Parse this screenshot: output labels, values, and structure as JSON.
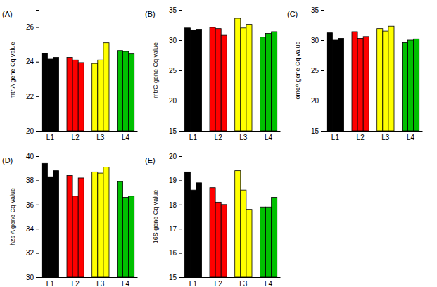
{
  "chart_data": [
    {
      "type": "bar",
      "title": "(A)",
      "y_label": "mtr A gene Cq value",
      "categories": [
        "L1",
        "L2",
        "L3",
        "L4"
      ],
      "values": [
        [
          24.5,
          24.15,
          24.25
        ],
        [
          24.25,
          24.1,
          23.95
        ],
        [
          23.9,
          24.1,
          25.1
        ],
        [
          24.65,
          24.6,
          24.45
        ]
      ],
      "colors": [
        "#000000",
        "#ff0000",
        "#ffff00",
        "#00c000"
      ],
      "ylim": [
        20,
        27
      ],
      "yticks": [
        20,
        22,
        24,
        26
      ]
    },
    {
      "type": "bar",
      "title": "(B)",
      "y_label": "mtrC gene Cq value",
      "categories": [
        "L1",
        "L2",
        "L3",
        "L4"
      ],
      "values": [
        [
          32.0,
          31.7,
          31.8
        ],
        [
          32.1,
          31.9,
          30.8
        ],
        [
          33.6,
          32.0,
          32.6
        ],
        [
          30.5,
          31.1,
          31.4
        ]
      ],
      "colors": [
        "#000000",
        "#ff0000",
        "#ffff00",
        "#00c000"
      ],
      "ylim": [
        15,
        35
      ],
      "yticks": [
        15,
        20,
        25,
        30,
        35
      ]
    },
    {
      "type": "bar",
      "title": "(C)",
      "y_label": "omcA gene Cq value",
      "categories": [
        "L1",
        "L2",
        "L3",
        "L4"
      ],
      "values": [
        [
          31.2,
          30.0,
          30.3
        ],
        [
          31.4,
          30.3,
          30.6
        ],
        [
          31.9,
          31.5,
          32.3
        ],
        [
          29.6,
          30.0,
          30.2
        ]
      ],
      "colors": [
        "#000000",
        "#ff0000",
        "#ffff00",
        "#00c000"
      ],
      "ylim": [
        15,
        35
      ],
      "yticks": [
        15,
        20,
        25,
        30,
        35
      ]
    },
    {
      "type": "bar",
      "title": "(D)",
      "y_label": "hzs A gene Cq value",
      "categories": [
        "L1",
        "L2",
        "L3",
        "L4"
      ],
      "values": [
        [
          39.4,
          38.3,
          38.8
        ],
        [
          38.4,
          36.7,
          38.2
        ],
        [
          38.7,
          38.6,
          39.1
        ],
        [
          37.9,
          36.6,
          36.7
        ]
      ],
      "colors": [
        "#000000",
        "#ff0000",
        "#ffff00",
        "#00c000"
      ],
      "ylim": [
        30,
        40
      ],
      "yticks": [
        30,
        32,
        34,
        36,
        38,
        40
      ]
    },
    {
      "type": "bar",
      "title": "(E)",
      "y_label": "16S gene Cq value",
      "categories": [
        "L1",
        "L2",
        "L3",
        "L4"
      ],
      "values": [
        [
          19.35,
          18.6,
          18.9
        ],
        [
          18.7,
          18.1,
          18.0
        ],
        [
          19.4,
          18.6,
          17.8
        ],
        [
          17.9,
          17.9,
          18.3
        ]
      ],
      "colors": [
        "#000000",
        "#ff0000",
        "#ffff00",
        "#00c000"
      ],
      "ylim": [
        15,
        20
      ],
      "yticks": [
        15,
        16,
        17,
        18,
        19,
        20
      ]
    }
  ]
}
